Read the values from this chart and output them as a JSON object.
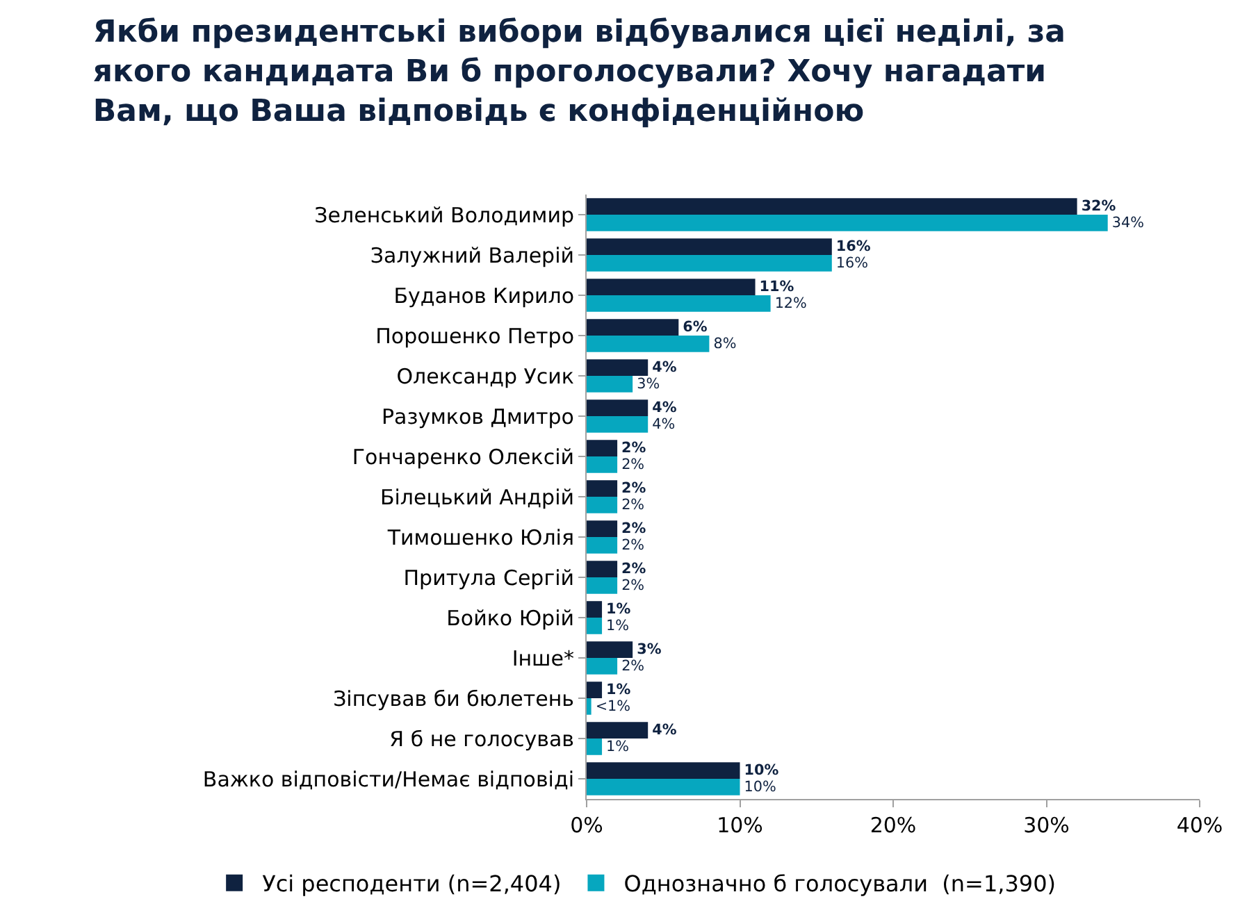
{
  "chart_data": {
    "type": "bar",
    "orientation": "horizontal",
    "title": "Якби президентські вибори відбувалися цієї неділі, за\nякого кандидата Ви б проголосували? Хочу нагадати\nВам, що Ваша відповідь є конфіденційною",
    "categories": [
      "Зеленський Володимир",
      "Залужний Валерій",
      "Буданов Кирило",
      "Порошенко Петро",
      "Олександр Усик",
      "Разумков Дмитро",
      "Гончаренко Олексій",
      "Білецький Андрій",
      "Тимошенко Юлія",
      "Притула Сергій",
      "Бойко Юрій",
      "Інше*",
      "Зіпсував би бюлетень",
      "Я б не голосував",
      "Важко відповісти/Немає відповіді"
    ],
    "series": [
      {
        "name": "Усі респоденти (n=2,404)",
        "color": "#0f2240",
        "values": [
          32,
          16,
          11,
          6,
          4,
          4,
          2,
          2,
          2,
          2,
          1,
          3,
          1,
          4,
          10
        ],
        "value_labels": [
          "32%",
          "16%",
          "11%",
          "6%",
          "4%",
          "4%",
          "2%",
          "2%",
          "2%",
          "2%",
          "1%",
          "3%",
          "1%",
          "4%",
          "10%"
        ]
      },
      {
        "name": "Однозначно б голосували  (n=1,390)",
        "color": "#06a7bf",
        "values": [
          34,
          16,
          12,
          8,
          3,
          4,
          2,
          2,
          2,
          2,
          1,
          2,
          0.3,
          1,
          10
        ],
        "value_labels": [
          "34%",
          "16%",
          "12%",
          "8%",
          "3%",
          "4%",
          "2%",
          "2%",
          "2%",
          "2%",
          "1%",
          "2%",
          "<1%",
          "1%",
          "10%"
        ]
      }
    ],
    "xlim": [
      0,
      40
    ],
    "xticks": [
      {
        "value": 0,
        "label": "0%"
      },
      {
        "value": 10,
        "label": "10%"
      },
      {
        "value": 20,
        "label": "20%"
      },
      {
        "value": 30,
        "label": "30%"
      },
      {
        "value": 40,
        "label": "40%"
      }
    ],
    "legend": "bottom"
  }
}
